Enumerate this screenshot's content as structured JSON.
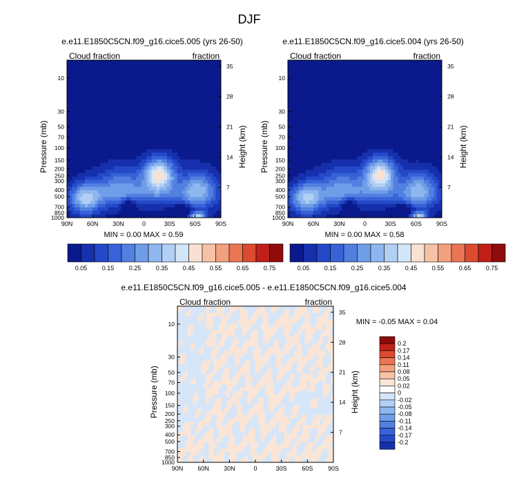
{
  "page_title": "DJF",
  "chart_data": [
    {
      "type": "heatmap",
      "title": "e.e11.E1850C5CN.f09_g16.cice5.005 (yrs 26-50)",
      "left_label": "Cloud fraction",
      "right_label": "fraction",
      "xlabel": "",
      "ylabel": "Pressure (mb)",
      "ylabel_right": "Height (km)",
      "x_ticks": [
        "90N",
        "60N",
        "30N",
        "0",
        "30S",
        "60S",
        "90S"
      ],
      "y_ticks": [
        "10",
        "30",
        "50",
        "70",
        "100",
        "150",
        "200",
        "250",
        "300",
        "400",
        "500",
        "700",
        "850",
        "1000"
      ],
      "y_ticks_right": [
        "35",
        "28",
        "21",
        "14",
        "7"
      ],
      "stats_text": "MIN =   0.00   MAX =   0.59",
      "min": 0.0,
      "max": 0.59,
      "colorbar_labels": [
        "0.05",
        "0.15",
        "0.25",
        "0.35",
        "0.45",
        "0.55",
        "0.65",
        "0.75"
      ]
    },
    {
      "type": "heatmap",
      "title": "e.e11.E1850C5CN.f09_g16.cice5.004 (yrs 26-50)",
      "left_label": "Cloud fraction",
      "right_label": "fraction",
      "xlabel": "",
      "ylabel": "Pressure (mb)",
      "ylabel_right": "Height (km)",
      "x_ticks": [
        "90N",
        "60N",
        "30N",
        "0",
        "30S",
        "60S",
        "90S"
      ],
      "y_ticks": [
        "10",
        "30",
        "50",
        "70",
        "100",
        "150",
        "200",
        "250",
        "300",
        "400",
        "500",
        "700",
        "850",
        "1000"
      ],
      "y_ticks_right": [
        "35",
        "28",
        "21",
        "14",
        "7"
      ],
      "stats_text": "MIN =   0.00   MAX =   0.58",
      "min": 0.0,
      "max": 0.58,
      "colorbar_labels": [
        "0.05",
        "0.15",
        "0.25",
        "0.35",
        "0.45",
        "0.55",
        "0.65",
        "0.75"
      ]
    },
    {
      "type": "heatmap",
      "title": "e.e11.E1850C5CN.f09_g16.cice5.005 - e.e11.E1850C5CN.f09_g16.cice5.004",
      "left_label": "Cloud fraction",
      "right_label": "fraction",
      "xlabel": "",
      "ylabel": "Pressure (mb)",
      "ylabel_right": "Height (km)",
      "x_ticks": [
        "90N",
        "60N",
        "30N",
        "0",
        "30S",
        "60S",
        "90S"
      ],
      "y_ticks": [
        "10",
        "30",
        "50",
        "70",
        "100",
        "150",
        "200",
        "250",
        "300",
        "400",
        "500",
        "700",
        "850",
        "1000"
      ],
      "y_ticks_right": [
        "35",
        "28",
        "21",
        "14",
        "7"
      ],
      "stats_text": "MIN =  -0.05   MAX =   0.04",
      "min": -0.05,
      "max": 0.04,
      "colorbar_labels": [
        "0.2",
        "0.17",
        "0.14",
        "0.11",
        "0.08",
        "0.05",
        "0.02",
        "0",
        "-0.02",
        "-0.05",
        "-0.08",
        "-0.11",
        "-0.14",
        "-0.17",
        "-0.2"
      ]
    }
  ],
  "palette": {
    "abs": [
      "#0a1a8c",
      "#1630ad",
      "#2449c8",
      "#3762d8",
      "#5280e0",
      "#6f9de8",
      "#8fb7ef",
      "#b2cff4",
      "#d3e5f8",
      "#f8e1d2",
      "#f6c3a7",
      "#f2a07e",
      "#ea7553",
      "#dc4a30",
      "#c02018",
      "#8f0b0c"
    ],
    "diff": [
      "#8f0b0c",
      "#c02018",
      "#dc4a30",
      "#ea7553",
      "#f2a07e",
      "#f6c3a7",
      "#fbe5d6",
      "#ffffff",
      "#d3e5f8",
      "#b2cff4",
      "#8fb7ef",
      "#6f9de8",
      "#5280e0",
      "#3762d8",
      "#2449c8",
      "#1630ad"
    ],
    "diff_background": "#fbe5d6",
    "diff_negative": "#d6e6f8"
  }
}
